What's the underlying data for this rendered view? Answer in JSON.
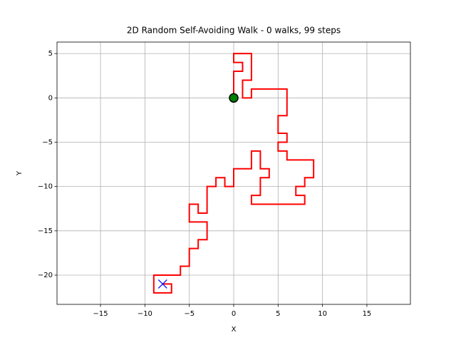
{
  "chart_data": {
    "type": "line",
    "title": "2D Random Self-Avoiding Walk - 0 walks, 99 steps",
    "x_label": "X",
    "y_label": "Y",
    "x": [
      0,
      0,
      1,
      1,
      0,
      0,
      2,
      2,
      1,
      1,
      2,
      2,
      6,
      6,
      5,
      5,
      6,
      6,
      5,
      5,
      6,
      6,
      9,
      9,
      8,
      8,
      7,
      7,
      8,
      8,
      2,
      2,
      3,
      3,
      4,
      4,
      3,
      3,
      2,
      2,
      0,
      0,
      -1,
      -1,
      -2,
      -2,
      -3,
      -3,
      -4,
      -4,
      -5,
      -5,
      -3,
      -3,
      -4,
      -4,
      -5,
      -5,
      -6,
      -6,
      -9,
      -9,
      -7,
      -7,
      -8
    ],
    "y": [
      0,
      3,
      3,
      4,
      4,
      5,
      5,
      2,
      2,
      0,
      0,
      1,
      1,
      -2,
      -2,
      -4,
      -4,
      -5,
      -5,
      -6,
      -6,
      -7,
      -7,
      -9,
      -9,
      -10,
      -10,
      -11,
      -11,
      -12,
      -12,
      -11,
      -11,
      -9,
      -9,
      -8,
      -8,
      -6,
      -6,
      -8,
      -8,
      -10,
      -10,
      -9,
      -9,
      -10,
      -10,
      -13,
      -13,
      -12,
      -12,
      -14,
      -14,
      -16,
      -16,
      -17,
      -17,
      -19,
      -19,
      -20,
      -20,
      -22,
      -22,
      -21,
      -21
    ],
    "color": "#ff0000",
    "start": {
      "x": 0,
      "y": 0,
      "color": "#008000"
    },
    "end": {
      "x": -8,
      "y": -21,
      "color": "#0000ff"
    },
    "xlim": [
      -19.9,
      19.9
    ],
    "ylim": [
      -23.3,
      6.3
    ],
    "xticks": [
      {
        "value": -15,
        "label": "−15"
      },
      {
        "value": -10,
        "label": "−10"
      },
      {
        "value": -5,
        "label": "−5"
      },
      0,
      5,
      10,
      15
    ],
    "yticks": [
      {
        "value": -20,
        "label": "−20"
      },
      {
        "value": -15,
        "label": "−15"
      },
      {
        "value": -10,
        "label": "−10"
      },
      {
        "value": -5,
        "label": "−5"
      },
      0,
      5
    ],
    "grid": true
  }
}
